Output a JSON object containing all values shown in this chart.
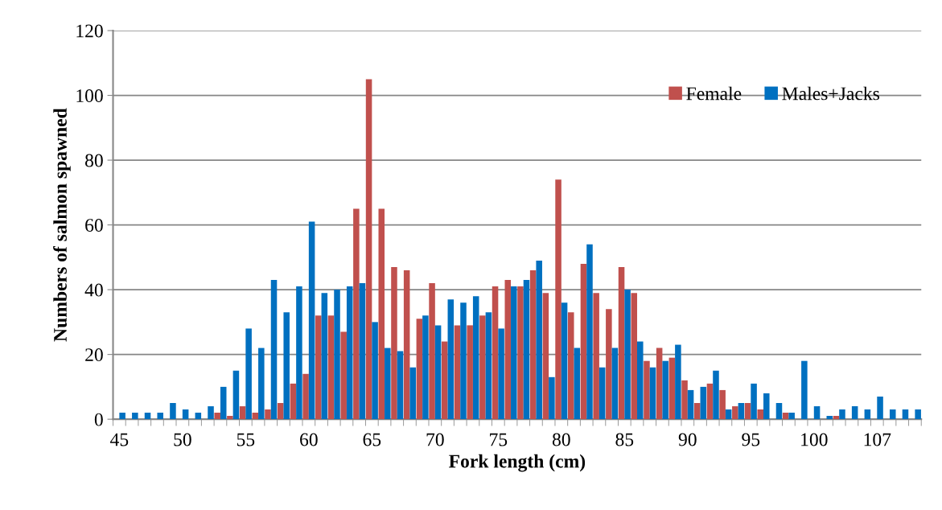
{
  "chart_data": {
    "type": "bar",
    "xlabel": "Fork length (cm)",
    "ylabel": "Numbers of salmon spawned",
    "categories": [
      "45",
      null,
      null,
      null,
      null,
      "50",
      null,
      null,
      null,
      null,
      "55",
      null,
      null,
      null,
      null,
      "60",
      null,
      null,
      null,
      null,
      "65",
      null,
      null,
      null,
      null,
      "70",
      null,
      null,
      null,
      null,
      "75",
      null,
      null,
      null,
      null,
      "80",
      null,
      null,
      null,
      null,
      "85",
      null,
      null,
      null,
      null,
      "90",
      null,
      null,
      null,
      null,
      "95",
      null,
      null,
      null,
      null,
      "100",
      null,
      null,
      null,
      null,
      "107",
      null,
      null,
      null
    ],
    "series": [
      {
        "name": "Female",
        "color": "#c0504d",
        "values": [
          0,
          0,
          0,
          0,
          0,
          0,
          0,
          0,
          2,
          1,
          4,
          2,
          3,
          5,
          11,
          14,
          32,
          32,
          27,
          65,
          105,
          65,
          47,
          46,
          31,
          42,
          24,
          29,
          29,
          32,
          41,
          43,
          41,
          46,
          39,
          74,
          33,
          48,
          39,
          34,
          47,
          39,
          18,
          22,
          19,
          12,
          5,
          11,
          9,
          4,
          5,
          3,
          0,
          2,
          0,
          0,
          0,
          1,
          0,
          0,
          0,
          0,
          0,
          0
        ]
      },
      {
        "name": "Males+Jacks",
        "color": "#0070c0",
        "values": [
          2,
          2,
          2,
          2,
          5,
          3,
          2,
          4,
          10,
          15,
          28,
          22,
          43,
          33,
          41,
          61,
          39,
          40,
          41,
          42,
          30,
          22,
          21,
          16,
          32,
          29,
          37,
          36,
          38,
          33,
          28,
          41,
          43,
          49,
          13,
          36,
          22,
          54,
          16,
          22,
          40,
          24,
          16,
          18,
          23,
          9,
          10,
          15,
          3,
          5,
          11,
          8,
          5,
          2,
          18,
          4,
          1,
          3,
          4,
          3,
          7,
          3,
          3,
          3
        ]
      }
    ],
    "ylim": [
      0,
      120
    ],
    "yticks": [
      0,
      20,
      40,
      60,
      80,
      100,
      120
    ],
    "grid": "y",
    "legend": "top right"
  }
}
